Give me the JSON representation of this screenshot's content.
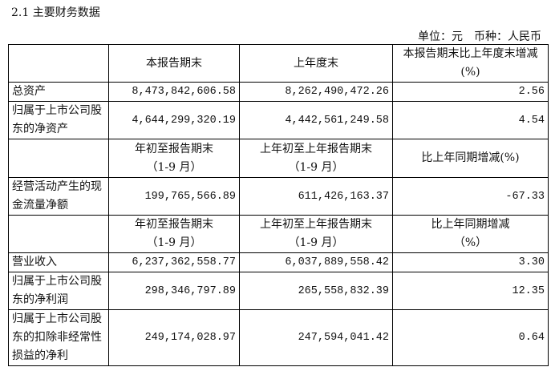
{
  "title": "2.1 主要财务数据",
  "unit": {
    "unit_label": "单位：元",
    "currency_label": "币种：人民币"
  },
  "header1": [
    "",
    "本报告期末",
    "上年度末",
    "本报告期末比上年度末增减(%)"
  ],
  "rows1": [
    {
      "label": "总资产",
      "values": [
        "8,473,842,606.58",
        "8,262,490,472.26",
        "2.56"
      ]
    },
    {
      "label": "归属于上市公司股东的净资产",
      "values": [
        "4,644,299,320.19",
        "4,442,561,249.58",
        "4.54"
      ]
    }
  ],
  "header2": {
    "c1a": "年初至报告期末",
    "c1b": "（1-9 月）",
    "c2a": "上年初至上年报告期末",
    "c2b": "（1-9 月）",
    "c3": "比上年同期增减(%)"
  },
  "rows2": [
    {
      "label": "经营活动产生的现金流量净额",
      "values": [
        "199,765,566.89",
        "611,426,163.37",
        "-67.33"
      ]
    }
  ],
  "header3": {
    "c1a": "年初至报告期末",
    "c1b": "（1-9 月）",
    "c2a": "上年初至上年报告期末",
    "c2b": "（1-9 月）",
    "c3a": "比上年同期增减",
    "c3b": "（%）"
  },
  "rows3": [
    {
      "label": "营业收入",
      "values": [
        "6,237,362,558.77",
        "6,037,889,558.42",
        "3.30"
      ]
    },
    {
      "label": "归属于上市公司股东的净利润",
      "values": [
        "298,346,797.89",
        "265,558,832.39",
        "12.35"
      ]
    },
    {
      "label": "归属于上市公司股东的扣除非经常性损益的净利",
      "values": [
        "249,174,028.97",
        "247,594,041.42",
        "0.64"
      ]
    }
  ]
}
